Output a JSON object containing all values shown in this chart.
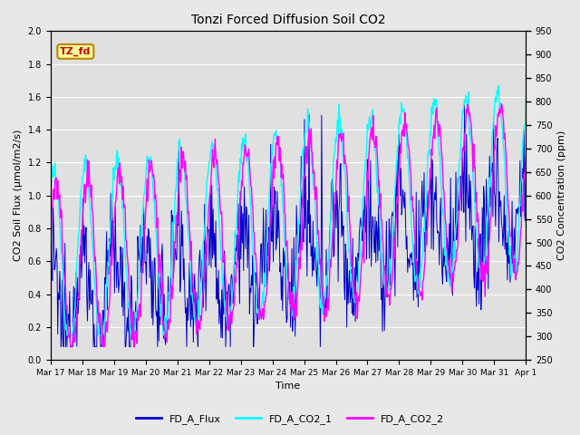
{
  "title": "Tonzi Forced Diffusion Soil CO2",
  "xlabel": "Time",
  "ylabel_left": "CO2 Soil Flux (μmol/m2/s)",
  "ylabel_right": "CO2 Concentration (ppm)",
  "ylim_left": [
    0.0,
    2.0
  ],
  "ylim_right": [
    250,
    950
  ],
  "fig_bg_color": "#e8e8e8",
  "plot_bg_color": "#e0e0e0",
  "flux_color": "#0000cc",
  "co2_1_color": "#00ffff",
  "co2_2_color": "#ff00ff",
  "legend_labels": [
    "FD_A_Flux",
    "FD_A_CO2_1",
    "FD_A_CO2_2"
  ],
  "tag_text": "TZ_fd",
  "tag_bg": "#ffff99",
  "tag_border": "#bb8800",
  "tag_text_color": "#cc0000",
  "xtick_labels": [
    "Mar 17",
    "Mar 18",
    "Mar 19",
    "Mar 20",
    "Mar 21",
    "Mar 22",
    "Mar 23",
    "Mar 24",
    "Mar 25",
    "Mar 26",
    "Mar 27",
    "Mar 28",
    "Mar 29",
    "Mar 30",
    "Mar 31",
    "Apr 1"
  ],
  "left_ytick_values": [
    0.0,
    0.2,
    0.4,
    0.6,
    0.8,
    1.0,
    1.2,
    1.4,
    1.6,
    1.8,
    2.0
  ],
  "right_ytick_values": [
    250,
    300,
    350,
    400,
    450,
    500,
    550,
    600,
    650,
    700,
    750,
    800,
    850,
    900,
    950
  ]
}
